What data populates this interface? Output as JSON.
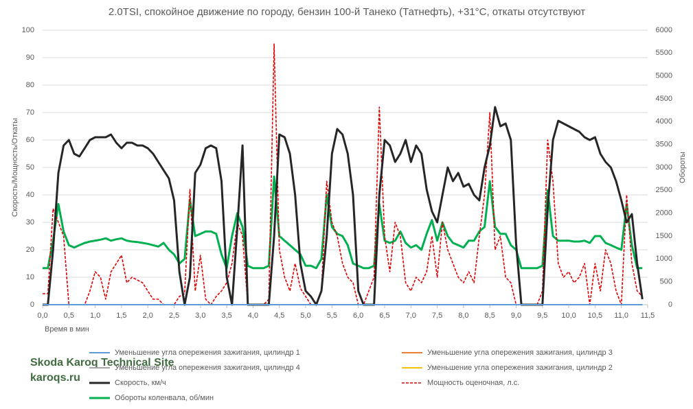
{
  "chart_data": {
    "type": "line",
    "title": "2.0TSI, спокойное движение по городу, бензин 100-й Танеко (Татнефть), +31°C, откаты отсутствуют",
    "xlabel": "Время в мин",
    "ylabel": "Скорость/Мощность/Откаты",
    "y2label": "Обороты",
    "watermark": [
      "Skoda Karoq Technical Site",
      "karoqs.ru"
    ],
    "xlim": [
      0,
      11.5
    ],
    "xticks": [
      {
        "value": 0,
        "label": "0,0"
      },
      {
        "value": 0.5,
        "label": "0,5"
      },
      {
        "value": 1,
        "label": "1,0"
      },
      {
        "value": 1.5,
        "label": "1,5"
      },
      {
        "value": 2,
        "label": "2,0"
      },
      {
        "value": 2.5,
        "label": "2,5"
      },
      {
        "value": 3,
        "label": "3,0"
      },
      {
        "value": 3.5,
        "label": "3,5"
      },
      {
        "value": 4,
        "label": "4,0"
      },
      {
        "value": 4.5,
        "label": "4,5"
      },
      {
        "value": 5,
        "label": "5,0"
      },
      {
        "value": 5.5,
        "label": "5,5"
      },
      {
        "value": 6,
        "label": "6,0"
      },
      {
        "value": 6.5,
        "label": "6,5"
      },
      {
        "value": 7,
        "label": "7,0"
      },
      {
        "value": 7.5,
        "label": "7,5"
      },
      {
        "value": 8,
        "label": "8,0"
      },
      {
        "value": 8.5,
        "label": "8,5"
      },
      {
        "value": 9,
        "label": "9,0"
      },
      {
        "value": 9.5,
        "label": "9,5"
      },
      {
        "value": 10,
        "label": "10,0"
      },
      {
        "value": 10.5,
        "label": "10,5"
      },
      {
        "value": 11,
        "label": "11,0"
      },
      {
        "value": 11.5,
        "label": "11,5"
      }
    ],
    "ylim": [
      0,
      100
    ],
    "yticks": [
      0,
      10,
      20,
      30,
      40,
      50,
      60,
      70,
      80,
      90,
      100
    ],
    "y2lim": [
      0,
      6000
    ],
    "y2ticks": [
      0,
      500,
      1000,
      1500,
      2000,
      2500,
      3000,
      3500,
      4000,
      4500,
      5000,
      5500,
      6000
    ],
    "x": [
      0,
      0.1,
      0.2,
      0.3,
      0.4,
      0.5,
      0.6,
      0.7,
      0.8,
      0.9,
      1,
      1.1,
      1.2,
      1.3,
      1.4,
      1.5,
      1.6,
      1.7,
      1.8,
      1.9,
      2,
      2.1,
      2.2,
      2.3,
      2.4,
      2.5,
      2.6,
      2.7,
      2.8,
      2.9,
      3,
      3.1,
      3.2,
      3.3,
      3.4,
      3.5,
      3.6,
      3.7,
      3.8,
      3.9,
      4,
      4.1,
      4.2,
      4.3,
      4.4,
      4.5,
      4.6,
      4.7,
      4.8,
      4.9,
      5,
      5.1,
      5.2,
      5.3,
      5.4,
      5.5,
      5.6,
      5.7,
      5.8,
      5.9,
      6,
      6.1,
      6.2,
      6.3,
      6.4,
      6.5,
      6.6,
      6.7,
      6.8,
      6.9,
      7,
      7.1,
      7.2,
      7.3,
      7.4,
      7.5,
      7.6,
      7.7,
      7.8,
      7.9,
      8,
      8.1,
      8.2,
      8.3,
      8.4,
      8.5,
      8.6,
      8.7,
      8.8,
      8.9,
      9,
      9.1,
      9.2,
      9.3,
      9.4,
      9.5,
      9.6,
      9.7,
      9.8,
      9.9,
      10,
      10.1,
      10.2,
      10.3,
      10.4,
      10.5,
      10.6,
      10.7,
      10.8,
      10.9,
      11,
      11.1,
      11.2,
      11.3,
      11.4
    ],
    "series": [
      {
        "name": "Уменьшение угла опережения зажигания, цилиндр 1",
        "color": "#5b9bd5",
        "width": 2,
        "dash": false,
        "values": [
          0,
          0,
          0,
          0,
          0,
          0,
          0,
          0,
          0,
          0,
          0,
          0,
          0,
          0,
          0,
          0,
          0,
          0,
          0,
          0,
          0,
          0,
          0,
          0,
          0,
          0,
          0,
          0,
          0,
          0,
          0,
          0,
          0,
          0,
          0,
          0,
          0,
          0,
          0,
          0,
          0,
          0,
          0,
          0,
          0,
          0,
          0,
          0,
          0,
          0,
          0,
          0,
          0,
          0,
          0,
          0,
          0,
          0,
          0,
          0,
          0,
          0,
          0,
          0,
          0,
          0,
          0,
          0,
          0,
          0,
          0,
          0,
          0,
          0,
          0,
          0,
          0,
          0,
          0,
          0,
          0,
          0,
          0,
          0,
          0,
          0,
          0,
          0,
          0,
          0,
          0,
          0,
          0,
          0,
          0,
          0,
          0,
          0,
          0,
          0,
          0,
          0,
          0,
          0,
          0,
          0,
          0,
          0,
          0,
          0,
          0,
          0,
          0,
          0,
          0
        ]
      },
      {
        "name": "Уменьшение угла опережения зажигания, цилиндр 3",
        "color": "#ed7d31",
        "width": 2,
        "dash": false,
        "values": [
          0,
          0,
          0,
          0,
          0,
          0,
          0,
          0,
          0,
          0,
          0,
          0,
          0,
          0,
          0,
          0,
          0,
          0,
          0,
          0,
          0,
          0,
          0,
          0,
          0,
          0,
          0,
          0,
          0,
          0,
          0,
          0,
          0,
          0,
          0,
          0,
          0,
          0,
          0,
          0,
          0,
          0,
          0,
          0,
          0,
          0,
          0,
          0,
          0,
          0,
          0,
          0,
          0,
          0,
          0,
          0,
          0,
          0,
          0,
          0,
          0,
          0,
          0,
          0,
          0,
          0,
          0,
          0,
          0,
          0,
          0,
          0,
          0,
          0,
          0,
          0,
          0,
          0,
          0,
          0,
          0,
          0,
          0,
          0,
          0,
          0,
          0,
          0,
          0,
          0,
          0,
          0,
          0,
          0,
          0,
          0,
          0,
          0,
          0,
          0,
          0,
          0,
          0,
          0,
          0,
          0,
          0,
          0,
          0,
          0,
          0,
          0,
          0,
          0,
          0
        ]
      },
      {
        "name": "Уменьшение угла опережения зажигания, цилиндр 4",
        "color": "#a5a5a5",
        "width": 2,
        "dash": false,
        "values": [
          0,
          0,
          0,
          0,
          0,
          0,
          0,
          0,
          0,
          0,
          0,
          0,
          0,
          0,
          0,
          0,
          0,
          0,
          0,
          0,
          0,
          0,
          0,
          0,
          0,
          0,
          0,
          0,
          0,
          0,
          0,
          0,
          0,
          0,
          0,
          0,
          0,
          0,
          0,
          0,
          0,
          0,
          0,
          0,
          0,
          0,
          0,
          0,
          0,
          0,
          0,
          0,
          0,
          0,
          0,
          0,
          0,
          0,
          0,
          0,
          0,
          0,
          0,
          0,
          0,
          0,
          0,
          0,
          0,
          0,
          0,
          0,
          0,
          0,
          0,
          0,
          0,
          0,
          0,
          0,
          0,
          0,
          0,
          0,
          0,
          0,
          0,
          0,
          0,
          0,
          0,
          0,
          0,
          0,
          0,
          0,
          0,
          0,
          0,
          0,
          0,
          0,
          0,
          0,
          0,
          0,
          0,
          0,
          0,
          0,
          0,
          0,
          0,
          0,
          0
        ]
      },
      {
        "name": "Уменьшение угла опережения зажигания, цилиндр 2",
        "color": "#ffc000",
        "width": 2,
        "dash": false,
        "values": [
          0,
          0,
          0,
          0,
          0,
          0,
          0,
          0,
          0,
          0,
          0,
          0,
          0,
          0,
          0,
          0,
          0,
          0,
          0,
          0,
          0,
          0,
          0,
          0,
          0,
          0,
          0,
          0,
          0,
          0,
          0,
          0,
          0,
          0,
          0,
          0,
          0,
          0,
          0,
          0,
          0,
          0,
          0,
          0,
          0,
          0,
          0,
          0,
          0,
          0,
          0,
          0,
          0,
          0,
          0,
          0,
          0,
          0,
          0,
          0,
          0,
          0,
          0,
          0,
          0,
          0,
          0,
          0,
          0,
          0,
          0,
          0,
          0,
          0,
          0,
          0,
          0,
          0,
          0,
          0,
          0,
          0,
          0,
          0,
          0,
          0,
          0,
          0,
          0,
          0,
          0,
          0,
          0,
          0,
          0,
          0,
          0,
          0,
          0,
          0,
          0,
          0,
          0,
          0,
          0,
          0,
          0,
          0,
          0,
          0,
          0,
          0,
          0,
          0,
          0
        ]
      },
      {
        "name": "Скорость, км/ч",
        "color": "#262626",
        "width": 3,
        "dash": false,
        "values": [
          0,
          0,
          20,
          48,
          58,
          60,
          55,
          54,
          57,
          60,
          61,
          61,
          61,
          62,
          59,
          57,
          59,
          59,
          58,
          58,
          57,
          55,
          52,
          49,
          46,
          38,
          12,
          0,
          10,
          48,
          51,
          57,
          58,
          57,
          45,
          10,
          0,
          28,
          58,
          0,
          0,
          0,
          0,
          0,
          25,
          62,
          61,
          55,
          40,
          15,
          5,
          3,
          0,
          5,
          25,
          55,
          64,
          62,
          55,
          40,
          5,
          0,
          0,
          0,
          40,
          60,
          58,
          52,
          55,
          60,
          52,
          58,
          55,
          42,
          34,
          30,
          40,
          50,
          45,
          48,
          43,
          44,
          40,
          38,
          50,
          58,
          72,
          65,
          66,
          60,
          22,
          0,
          0,
          0,
          0,
          0,
          35,
          60,
          67,
          66,
          65,
          64,
          63,
          61,
          60,
          61,
          55,
          52,
          50,
          45,
          38,
          30,
          33,
          15,
          2
        ]
      },
      {
        "name": "Мощность оценочная, л.с.",
        "color": "#e00000",
        "width": 1.6,
        "dash": true,
        "values": [
          4,
          4,
          35,
          30,
          25,
          0,
          0,
          0,
          0,
          5,
          12,
          10,
          2,
          12,
          15,
          18,
          8,
          10,
          9,
          8,
          5,
          2,
          2,
          0,
          0,
          0,
          3,
          4,
          42,
          5,
          18,
          2,
          0,
          3,
          5,
          8,
          15,
          30,
          25,
          0,
          0,
          0,
          0,
          2,
          95,
          20,
          10,
          5,
          15,
          6,
          3,
          0,
          0,
          5,
          45,
          30,
          25,
          15,
          10,
          8,
          0,
          0,
          5,
          10,
          72,
          25,
          12,
          30,
          25,
          8,
          5,
          10,
          8,
          12,
          25,
          10,
          30,
          20,
          15,
          10,
          8,
          12,
          8,
          25,
          40,
          70,
          20,
          25,
          10,
          8,
          0,
          0,
          0,
          0,
          0,
          5,
          60,
          45,
          15,
          10,
          12,
          8,
          10,
          15,
          0,
          15,
          5,
          20,
          15,
          5,
          0,
          40,
          15,
          5,
          3
        ]
      },
      {
        "name": "Обороты коленвала, об/мин",
        "color": "#00b050",
        "width": 3,
        "dash": false,
        "axis": "y2",
        "values": [
          800,
          800,
          1400,
          2200,
          1600,
          1300,
          1250,
          1300,
          1350,
          1380,
          1400,
          1420,
          1450,
          1400,
          1430,
          1450,
          1400,
          1380,
          1370,
          1350,
          1330,
          1300,
          1270,
          1350,
          1200,
          1100,
          900,
          1000,
          2300,
          1500,
          1550,
          1600,
          1600,
          1550,
          1100,
          800,
          1500,
          2000,
          1700,
          850,
          800,
          800,
          800,
          850,
          2800,
          1500,
          1400,
          1300,
          1200,
          1100,
          850,
          850,
          800,
          1000,
          2400,
          1700,
          1550,
          1500,
          1300,
          900,
          850,
          800,
          800,
          850,
          2200,
          1400,
          1350,
          1400,
          1600,
          1350,
          1250,
          1300,
          1200,
          1550,
          1850,
          1400,
          1800,
          1500,
          1350,
          1300,
          1250,
          1400,
          1400,
          1600,
          1700,
          2700,
          1700,
          1550,
          1550,
          1300,
          1200,
          800,
          800,
          800,
          800,
          850,
          2500,
          1500,
          1400,
          1400,
          1400,
          1380,
          1380,
          1400,
          1350,
          1500,
          1500,
          1350,
          1300,
          1250,
          1200,
          2200,
          1300,
          800,
          800
        ]
      }
    ]
  }
}
